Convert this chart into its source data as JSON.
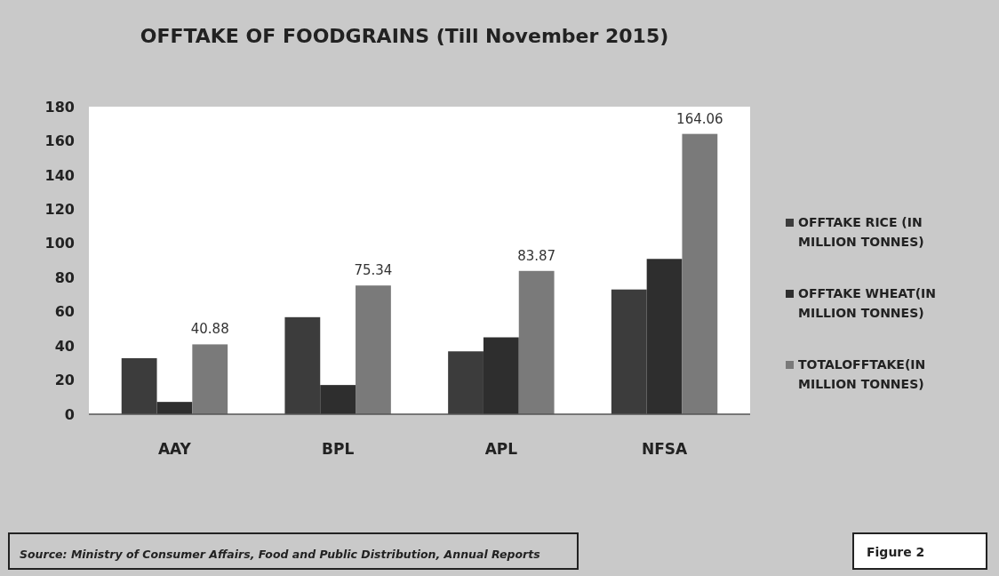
{
  "chart_data": {
    "type": "bar",
    "title": "OFFTAKE OF FOODGRAINS (Till November 2015)",
    "categories": [
      "AAY",
      "BPL",
      "APL",
      "NFSA"
    ],
    "series": [
      {
        "name": "OFFTAKE RICE (IN MILLION TONNES)",
        "color": "#3c3c3c",
        "values": [
          32.8,
          56.8,
          36.8,
          73
        ]
      },
      {
        "name": "OFFTAKE WHEAT(IN MILLION TONNES)",
        "color": "#2e2e2e",
        "values": [
          7.2,
          17.1,
          45,
          90.9
        ]
      },
      {
        "name": "TOTALOFFTAKE(IN MILLION TONNES)",
        "color": "#7a7a7a",
        "values": [
          40.88,
          75.34,
          83.87,
          164.06
        ],
        "value_labels": [
          "40.88",
          "75.34",
          "83.87",
          "164.06"
        ]
      }
    ],
    "ylim": [
      0,
      180
    ],
    "yticks": [
      0,
      20,
      40,
      60,
      80,
      100,
      120,
      140,
      160,
      180
    ],
    "grid": false,
    "legend": "right",
    "annotations": [
      "Source: Ministry of Consumer Affairs, Food and Public Distribution, Annual Reports",
      "Figure 2"
    ]
  }
}
